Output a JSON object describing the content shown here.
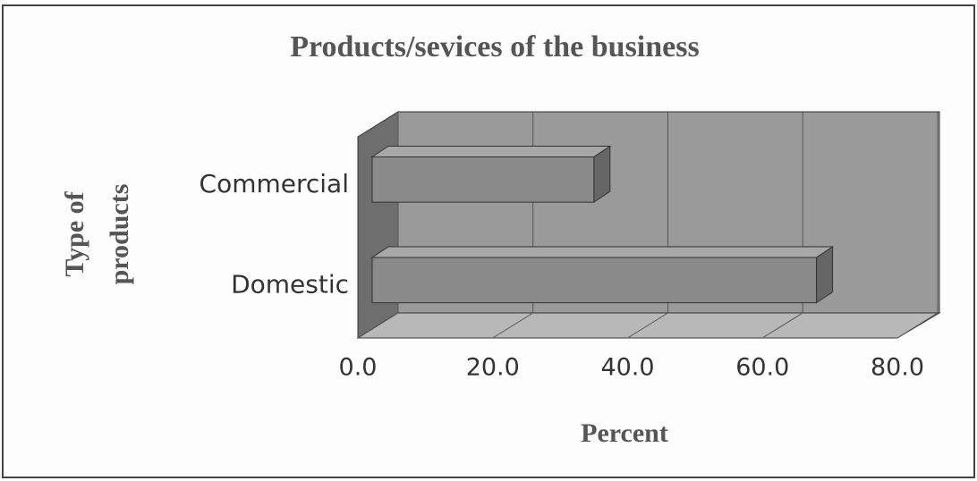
{
  "chart_data": {
    "type": "bar3d_horizontal",
    "title": "Products/sevices of the business",
    "x_label": "Percent",
    "y_label": [
      "Type of",
      "products"
    ],
    "categories": [
      "Commercial",
      "Domestic"
    ],
    "values": [
      35,
      68
    ],
    "color": "#8a8a8a",
    "xlim": [
      0,
      80
    ],
    "xticks": [
      {
        "value": 0,
        "label": "0.0"
      },
      {
        "value": 20,
        "label": "20.0"
      },
      {
        "value": 40,
        "label": "40.0"
      },
      {
        "value": 60,
        "label": "60.0"
      },
      {
        "value": 80,
        "label": "80.0"
      }
    ],
    "grid": true
  }
}
